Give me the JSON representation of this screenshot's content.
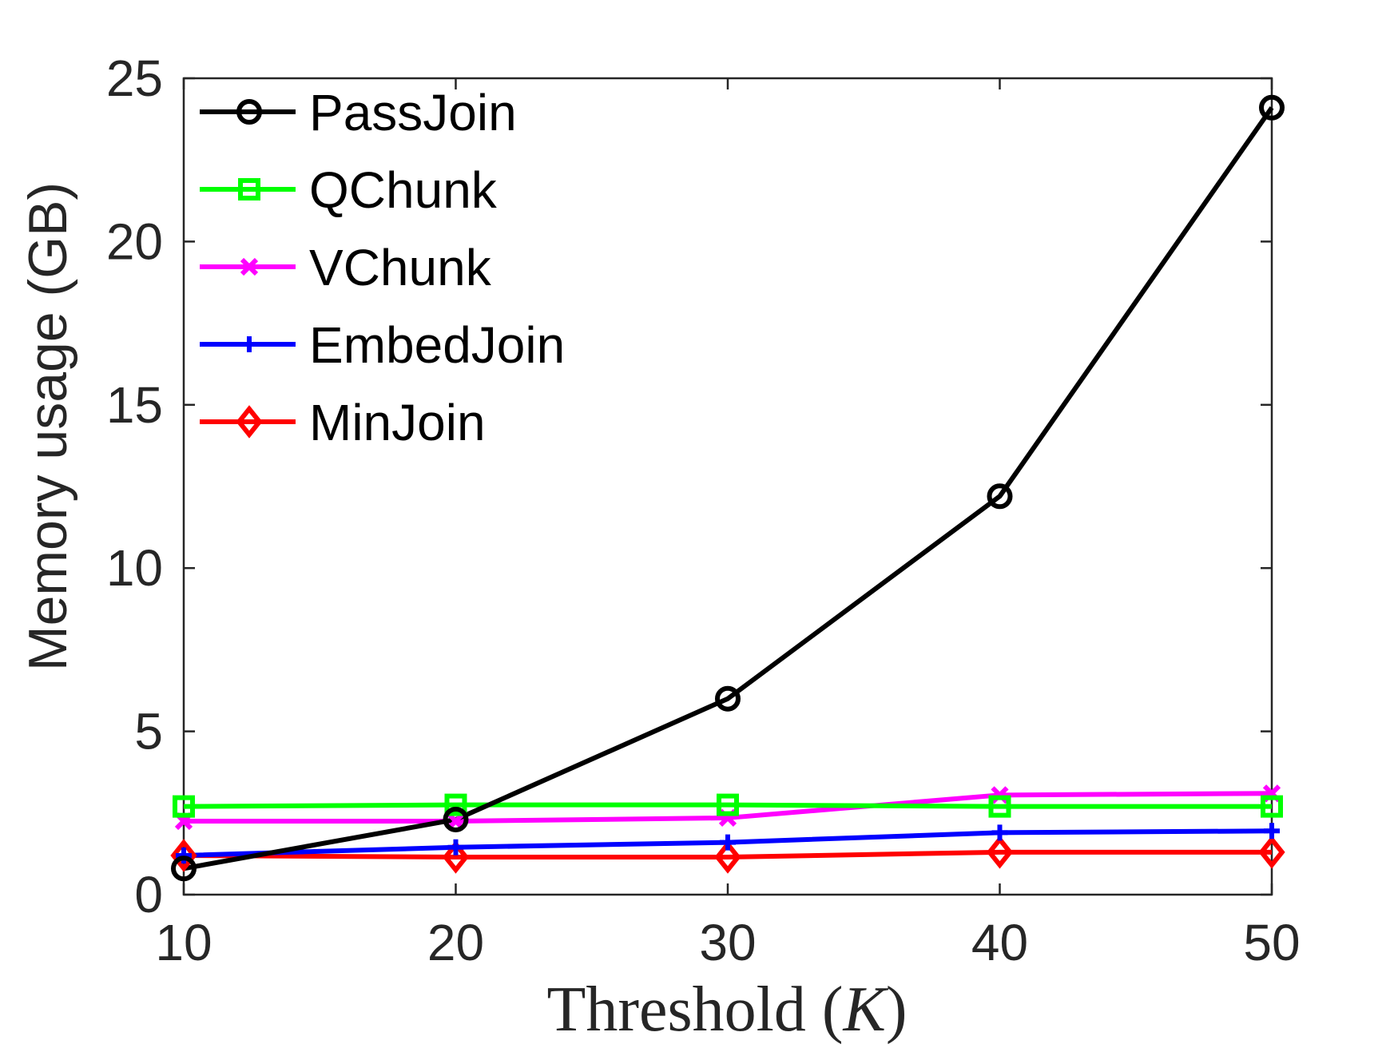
{
  "chart_data": {
    "type": "line",
    "title": "",
    "xlabel": "Threshold (K)",
    "xlabel_parts": {
      "prefix": "Threshold (",
      "var": "K",
      "suffix": ")"
    },
    "ylabel": "Memory usage (GB)",
    "x": [
      10,
      20,
      30,
      40,
      50
    ],
    "xlim": [
      10,
      50
    ],
    "ylim": [
      0,
      25
    ],
    "xticks": [
      10,
      20,
      30,
      40,
      50
    ],
    "yticks": [
      0,
      5,
      10,
      15,
      20,
      25
    ],
    "grid": false,
    "legend_position": "top-left",
    "series": [
      {
        "name": "PassJoin",
        "color": "#000000",
        "marker": "circle",
        "values": [
          0.8,
          2.3,
          6.0,
          12.2,
          24.1
        ]
      },
      {
        "name": "QChunk",
        "color": "#00ff00",
        "marker": "square",
        "values": [
          2.7,
          2.75,
          2.75,
          2.7,
          2.7
        ]
      },
      {
        "name": "VChunk",
        "color": "#ff00ff",
        "marker": "x",
        "values": [
          2.25,
          2.25,
          2.35,
          3.05,
          3.1
        ]
      },
      {
        "name": "EmbedJoin",
        "color": "#0000ff",
        "marker": "plus",
        "values": [
          1.2,
          1.45,
          1.6,
          1.9,
          1.95
        ]
      },
      {
        "name": "MinJoin",
        "color": "#ff0000",
        "marker": "diamond",
        "values": [
          1.2,
          1.15,
          1.15,
          1.3,
          1.3
        ]
      }
    ]
  }
}
